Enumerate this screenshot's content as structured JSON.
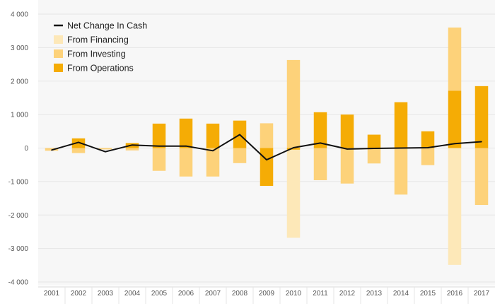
{
  "chart_data": {
    "type": "bar",
    "stacked": true,
    "categories": [
      "2001",
      "2002",
      "2003",
      "2004",
      "2005",
      "2006",
      "2007",
      "2008",
      "2009",
      "2010",
      "2011",
      "2012",
      "2013",
      "2014",
      "2015",
      "2016",
      "2017"
    ],
    "ylim": [
      -4000,
      4000
    ],
    "yticks": [
      4000,
      3000,
      2000,
      1000,
      0,
      -1000,
      -2000,
      -3000,
      -4000
    ],
    "ytick_labels": [
      "4 000",
      "3 000",
      "2 000",
      "1 000",
      "0",
      "-1 000",
      "-2 000",
      "-3 000",
      "-4 000"
    ],
    "grid": "horizontal",
    "legend_position": "top-left",
    "colors": {
      "From Financing": "#fde8b8",
      "From Investing": "#fdd27a",
      "From Operations": "#f5ac05",
      "Net Change In Cash": "#111111",
      "grid": "#e6e6e6",
      "axis_text": "#555555",
      "plot_bg": "#f7f7f7"
    },
    "series": [
      {
        "name": "From Operations",
        "type": "bar",
        "values": [
          0,
          290,
          0,
          150,
          730,
          880,
          730,
          820,
          -1130,
          -50,
          1070,
          1000,
          400,
          1370,
          500,
          1710,
          1850
        ]
      },
      {
        "name": "From Investing",
        "type": "bar",
        "values": [
          -80,
          -150,
          -40,
          -70,
          -680,
          -850,
          -850,
          -450,
          740,
          2630,
          -960,
          -1060,
          -460,
          -1390,
          -510,
          1890,
          -1700
        ]
      },
      {
        "name": "From Financing",
        "type": "bar",
        "values": [
          0,
          0,
          0,
          0,
          0,
          0,
          0,
          0,
          0,
          -2630,
          0,
          0,
          0,
          0,
          0,
          -3490,
          0
        ]
      },
      {
        "name": "Net Change In Cash",
        "type": "line",
        "values": [
          -60,
          170,
          -110,
          90,
          60,
          60,
          -80,
          400,
          -350,
          10,
          150,
          -30,
          -10,
          0,
          10,
          130,
          190
        ]
      }
    ]
  },
  "legend": {
    "items": [
      {
        "label": "Net Change In Cash",
        "kind": "line",
        "color": "#111111"
      },
      {
        "label": "From Financing",
        "kind": "box",
        "color": "#fde8b8"
      },
      {
        "label": "From Investing",
        "kind": "box",
        "color": "#fdd27a"
      },
      {
        "label": "From Operations",
        "kind": "box",
        "color": "#f5ac05"
      }
    ]
  }
}
